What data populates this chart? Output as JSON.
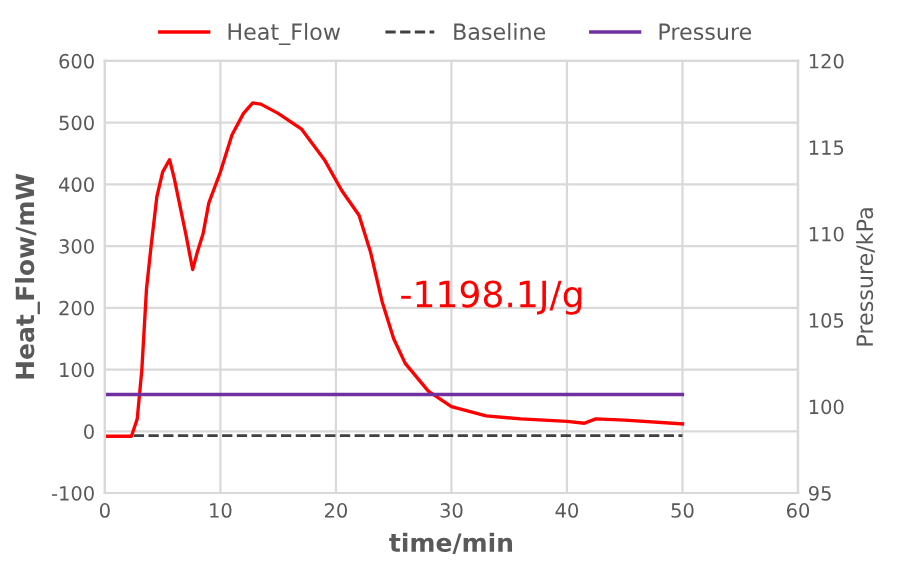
{
  "chart_data": {
    "type": "line",
    "xlabel": "time/min",
    "ylabel": "Heat_Flow/mW",
    "y2label": "Pressure/kPa",
    "xlim": [
      0,
      60
    ],
    "xticks": [
      0,
      10,
      20,
      30,
      40,
      50,
      60
    ],
    "ylim": [
      -100,
      600
    ],
    "yticks": [
      -100,
      0,
      100,
      200,
      300,
      400,
      500,
      600
    ],
    "y2lim": [
      95,
      120
    ],
    "y2ticks": [
      95,
      100,
      105,
      110,
      115,
      120
    ],
    "grid": true,
    "legend": "top",
    "marker": "none",
    "annotations": [
      "-1198.1J/g"
    ],
    "series": [
      {
        "name": "Heat_Flow",
        "color": "#ff0000",
        "line_style": "solid",
        "x": [
          0,
          2.3,
          2.8,
          3.2,
          3.6,
          4,
          4.5,
          5,
          5.6,
          6,
          7,
          7.6,
          8,
          8.5,
          9,
          10,
          11,
          12,
          12.8,
          13.5,
          15,
          17,
          19,
          20.5,
          22,
          23,
          24,
          25,
          26,
          28,
          30,
          33,
          36,
          40,
          41.5,
          42.5,
          45,
          50
        ],
        "values": [
          -8,
          -8,
          20,
          100,
          230,
          300,
          380,
          420,
          440,
          410,
          320,
          262,
          290,
          320,
          370,
          420,
          480,
          515,
          532,
          530,
          515,
          490,
          440,
          390,
          350,
          290,
          210,
          150,
          110,
          65,
          40,
          25,
          20,
          16,
          13,
          20,
          18,
          12
        ]
      },
      {
        "name": "Baseline",
        "color": "#404040",
        "line_style": "dashed",
        "x": [
          2.5,
          50
        ],
        "values": [
          -7,
          -7
        ]
      },
      {
        "name": "Pressure",
        "color": "#7030a0",
        "line_style": "solid",
        "axis": "y2",
        "x": [
          0,
          50
        ],
        "values": [
          100.7,
          100.7
        ]
      }
    ]
  }
}
